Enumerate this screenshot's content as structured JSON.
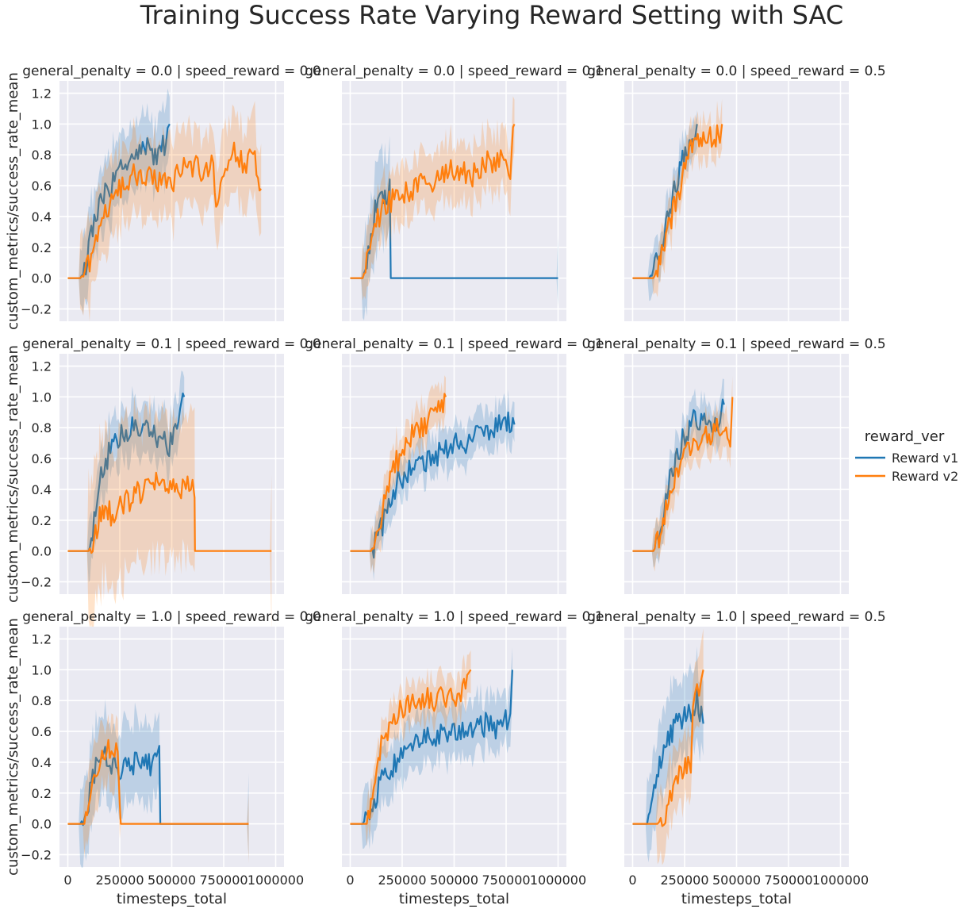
{
  "figure": {
    "title": "Training Success Rate Varying Reward Setting with SAC"
  },
  "legend": {
    "title": "reward_ver",
    "entries": [
      {
        "label": "Reward v1",
        "color": "#1f77b4"
      },
      {
        "label": "Reward v2",
        "color": "#ff7f0e"
      }
    ]
  },
  "colors": {
    "background": "#eaeaf2",
    "grid": "#ffffff",
    "v1": "#1f77b4",
    "v2": "#ff7f0e"
  },
  "chart_data": {
    "type": "line",
    "facet_rows": "general_penalty",
    "facet_cols": "speed_reward",
    "xlabel": "timesteps_total",
    "ylabel": "custom_metrics/success_rate_mean",
    "xlim": [
      -40000,
      1040000
    ],
    "ylim": [
      -0.28,
      1.28
    ],
    "xticks": [
      0,
      250000,
      500000,
      750000,
      1000000
    ],
    "xtick_labels": [
      "0",
      "250000",
      "500000",
      "750000",
      "1000000"
    ],
    "yticks": [
      -0.2,
      0.0,
      0.2,
      0.4,
      0.6,
      0.8,
      1.0,
      1.2
    ],
    "ytick_labels": [
      "−0.2",
      "0.0",
      "0.2",
      "0.4",
      "0.6",
      "0.8",
      "1.0",
      "1.2"
    ],
    "series_names": [
      "Reward v1",
      "Reward v2"
    ],
    "panels": [
      {
        "title": "general_penalty = 0.0 | speed_reward = 0.0",
        "series": [
          {
            "name": "Reward v1",
            "x": [
              0,
              60000,
              80000,
              100000,
              120000,
              150000,
              180000,
              210000,
              240000,
              270000,
              300000,
              330000,
              360000,
              390000,
              420000,
              450000,
              480000,
              490000
            ],
            "y": [
              0,
              0,
              0.05,
              0.2,
              0.35,
              0.45,
              0.55,
              0.6,
              0.7,
              0.75,
              0.78,
              0.8,
              0.82,
              0.85,
              0.8,
              0.85,
              0.9,
              1.0
            ],
            "band": 0.25
          },
          {
            "name": "Reward v2",
            "x": [
              0,
              60000,
              90000,
              120000,
              150000,
              180000,
              210000,
              240000,
              270000,
              300000,
              350000,
              400000,
              450000,
              500000,
              550000,
              600000,
              650000,
              700000,
              720000,
              750000,
              800000,
              850000,
              900000,
              930000
            ],
            "y": [
              0,
              0,
              0.05,
              0.15,
              0.3,
              0.4,
              0.5,
              0.55,
              0.62,
              0.65,
              0.68,
              0.65,
              0.6,
              0.62,
              0.7,
              0.72,
              0.7,
              0.75,
              0.4,
              0.72,
              0.8,
              0.75,
              0.8,
              0.58
            ],
            "band": 0.3
          }
        ]
      },
      {
        "title": "general_penalty = 0.0 | speed_reward = 0.1",
        "series": [
          {
            "name": "Reward v1",
            "x": [
              0,
              60000,
              80000,
              100000,
              120000,
              140000,
              160000,
              180000,
              190000,
              195000,
              300000,
              500000,
              700000,
              900000,
              1000000
            ],
            "y": [
              0,
              0,
              0.1,
              0.3,
              0.45,
              0.5,
              0.55,
              0.55,
              0.6,
              0,
              0,
              0,
              0,
              0,
              0
            ],
            "band": 0.3
          },
          {
            "name": "Reward v2",
            "x": [
              0,
              60000,
              80000,
              110000,
              140000,
              180000,
              220000,
              260000,
              300000,
              340000,
              380000,
              420000,
              460000,
              500000,
              540000,
              580000,
              620000,
              660000,
              700000,
              740000,
              770000,
              790000
            ],
            "y": [
              0,
              0,
              0.1,
              0.3,
              0.4,
              0.5,
              0.52,
              0.55,
              0.58,
              0.6,
              0.62,
              0.65,
              0.68,
              0.7,
              0.72,
              0.65,
              0.7,
              0.75,
              0.72,
              0.78,
              0.7,
              1.0
            ],
            "band": 0.22
          }
        ]
      },
      {
        "title": "general_penalty = 0.0 | speed_reward = 0.5",
        "series": [
          {
            "name": "Reward v1",
            "x": [
              0,
              80000,
              100000,
              120000,
              140000,
              160000,
              180000,
              200000,
              220000,
              240000,
              260000,
              280000,
              300000,
              310000
            ],
            "y": [
              0,
              0,
              0.05,
              0.15,
              0.25,
              0.35,
              0.45,
              0.55,
              0.65,
              0.75,
              0.85,
              0.92,
              0.95,
              1.0
            ],
            "band": 0.15
          },
          {
            "name": "Reward v2",
            "x": [
              0,
              100000,
              120000,
              140000,
              160000,
              180000,
              200000,
              220000,
              240000,
              260000,
              280000,
              300000,
              320000,
              340000,
              360000,
              380000,
              400000,
              420000,
              430000
            ],
            "y": [
              0,
              0,
              0.05,
              0.15,
              0.25,
              0.35,
              0.45,
              0.55,
              0.65,
              0.75,
              0.85,
              0.9,
              0.92,
              0.9,
              0.95,
              0.9,
              0.92,
              0.95,
              1.0
            ],
            "band": 0.15
          }
        ]
      },
      {
        "title": "general_penalty = 0.1 | speed_reward = 0.0",
        "series": [
          {
            "name": "Reward v1",
            "x": [
              0,
              100000,
              120000,
              140000,
              160000,
              190000,
              220000,
              250000,
              280000,
              310000,
              340000,
              370000,
              400000,
              430000,
              450000,
              480000,
              510000,
              540000,
              560000
            ],
            "y": [
              0,
              0,
              0.1,
              0.35,
              0.5,
              0.6,
              0.7,
              0.75,
              0.78,
              0.8,
              0.75,
              0.8,
              0.78,
              0.72,
              0.8,
              0.65,
              0.8,
              0.85,
              1.0
            ],
            "band": 0.2
          },
          {
            "name": "Reward v2",
            "x": [
              0,
              100000,
              120000,
              140000,
              160000,
              180000,
              200000,
              230000,
              260000,
              290000,
              320000,
              350000,
              380000,
              410000,
              440000,
              470000,
              500000,
              530000,
              560000,
              600000,
              610000,
              612000,
              700000,
              800000,
              900000,
              980000
            ],
            "y": [
              0,
              0,
              0.05,
              0.15,
              0.25,
              0.3,
              0.25,
              0.22,
              0.3,
              0.33,
              0.36,
              0.38,
              0.4,
              0.42,
              0.44,
              0.42,
              0.45,
              0.4,
              0.42,
              0.45,
              0.38,
              0,
              0,
              0,
              0,
              0
            ],
            "band": 0.55
          }
        ]
      },
      {
        "title": "general_penalty = 0.1 | speed_reward = 0.1",
        "series": [
          {
            "name": "Reward v1",
            "x": [
              0,
              100000,
              120000,
              140000,
              170000,
              200000,
              230000,
              260000,
              300000,
              340000,
              380000,
              420000,
              460000,
              500000,
              540000,
              580000,
              620000,
              660000,
              700000,
              740000,
              760000,
              790000
            ],
            "y": [
              0,
              0,
              0.05,
              0.1,
              0.25,
              0.35,
              0.45,
              0.5,
              0.55,
              0.58,
              0.6,
              0.62,
              0.65,
              0.68,
              0.7,
              0.72,
              0.75,
              0.78,
              0.8,
              0.82,
              0.85,
              0.82
            ],
            "band": 0.15
          },
          {
            "name": "Reward v2",
            "x": [
              0,
              100000,
              120000,
              140000,
              170000,
              200000,
              230000,
              260000,
              290000,
              320000,
              350000,
              380000,
              410000,
              440000,
              460000
            ],
            "y": [
              0,
              0,
              0.05,
              0.15,
              0.35,
              0.5,
              0.6,
              0.7,
              0.75,
              0.8,
              0.82,
              0.85,
              0.88,
              0.92,
              1.0
            ],
            "band": 0.15
          }
        ]
      },
      {
        "title": "general_penalty = 0.1 | speed_reward = 0.5",
        "series": [
          {
            "name": "Reward v1",
            "x": [
              0,
              100000,
              120000,
              140000,
              160000,
              180000,
              200000,
              220000,
              240000,
              260000,
              280000,
              300000,
              330000,
              360000,
              390000,
              420000,
              440000
            ],
            "y": [
              0,
              0,
              0.05,
              0.15,
              0.3,
              0.45,
              0.55,
              0.65,
              0.72,
              0.78,
              0.82,
              0.85,
              0.82,
              0.85,
              0.8,
              0.88,
              0.95
            ],
            "band": 0.15
          },
          {
            "name": "Reward v2",
            "x": [
              0,
              100000,
              120000,
              140000,
              160000,
              180000,
              200000,
              220000,
              240000,
              270000,
              300000,
              330000,
              360000,
              390000,
              420000,
              450000,
              470000,
              480000
            ],
            "y": [
              0,
              0,
              0.05,
              0.12,
              0.25,
              0.35,
              0.45,
              0.55,
              0.62,
              0.68,
              0.7,
              0.72,
              0.75,
              0.78,
              0.8,
              0.82,
              0.75,
              1.0
            ],
            "band": 0.15
          }
        ]
      },
      {
        "title": "general_penalty = 1.0 | speed_reward = 0.0",
        "series": [
          {
            "name": "Reward v1",
            "x": [
              0,
              60000,
              80000,
              100000,
              120000,
              150000,
              180000,
              210000,
              240000,
              270000,
              300000,
              330000,
              360000,
              390000,
              420000,
              440000,
              445000,
              550000,
              650000,
              750000,
              870000
            ],
            "y": [
              0,
              0,
              0.05,
              0.15,
              0.3,
              0.4,
              0.45,
              0.4,
              0.35,
              0.4,
              0.38,
              0.4,
              0.42,
              0.38,
              0.4,
              0.5,
              0,
              0,
              0,
              0,
              0
            ],
            "band": 0.3
          },
          {
            "name": "Reward v2",
            "x": [
              0,
              80000,
              100000,
              120000,
              150000,
              180000,
              210000,
              240000,
              250000,
              255000,
              400000,
              600000,
              870000
            ],
            "y": [
              0,
              0,
              0.1,
              0.25,
              0.35,
              0.45,
              0.5,
              0.45,
              0.2,
              0,
              0,
              0,
              0
            ],
            "band": 0.25
          }
        ]
      },
      {
        "title": "general_penalty = 1.0 | speed_reward = 0.1",
        "series": [
          {
            "name": "Reward v1",
            "x": [
              0,
              60000,
              80000,
              100000,
              130000,
              160000,
              190000,
              220000,
              260000,
              300000,
              340000,
              380000,
              420000,
              460000,
              500000,
              540000,
              580000,
              620000,
              660000,
              700000,
              740000,
              770000,
              780000
            ],
            "y": [
              0,
              0,
              0.05,
              0.1,
              0.2,
              0.3,
              0.35,
              0.4,
              0.45,
              0.5,
              0.55,
              0.55,
              0.58,
              0.6,
              0.6,
              0.58,
              0.6,
              0.62,
              0.65,
              0.6,
              0.65,
              0.7,
              1.0
            ],
            "band": 0.2
          },
          {
            "name": "Reward v2",
            "x": [
              0,
              80000,
              100000,
              120000,
              150000,
              180000,
              210000,
              240000,
              270000,
              300000,
              340000,
              380000,
              420000,
              460000,
              500000,
              540000,
              570000,
              580000
            ],
            "y": [
              0,
              0,
              0.1,
              0.3,
              0.5,
              0.62,
              0.7,
              0.75,
              0.78,
              0.8,
              0.8,
              0.82,
              0.8,
              0.82,
              0.8,
              0.85,
              0.9,
              1.0
            ],
            "band": 0.15
          }
        ]
      },
      {
        "title": "general_penalty = 1.0 | speed_reward = 0.5",
        "series": [
          {
            "name": "Reward v1",
            "x": [
              0,
              70000,
              90000,
              110000,
              130000,
              150000,
              170000,
              190000,
              210000,
              230000,
              250000,
              270000,
              290000,
              310000,
              330000,
              340000
            ],
            "y": [
              0,
              0,
              0.1,
              0.25,
              0.4,
              0.5,
              0.55,
              0.6,
              0.65,
              0.7,
              0.68,
              0.72,
              0.75,
              0.8,
              0.7,
              0.65
            ],
            "band": 0.3
          },
          {
            "name": "Reward v2",
            "x": [
              0,
              120000,
              150000,
              180000,
              210000,
              240000,
              260000,
              280000,
              290000,
              300000,
              310000,
              320000,
              330000,
              340000
            ],
            "y": [
              0,
              0,
              0.05,
              0.15,
              0.25,
              0.35,
              0.4,
              0.35,
              0.7,
              0.8,
              0.85,
              0.9,
              0.95,
              1.0
            ],
            "band": 0.25
          }
        ]
      }
    ]
  }
}
